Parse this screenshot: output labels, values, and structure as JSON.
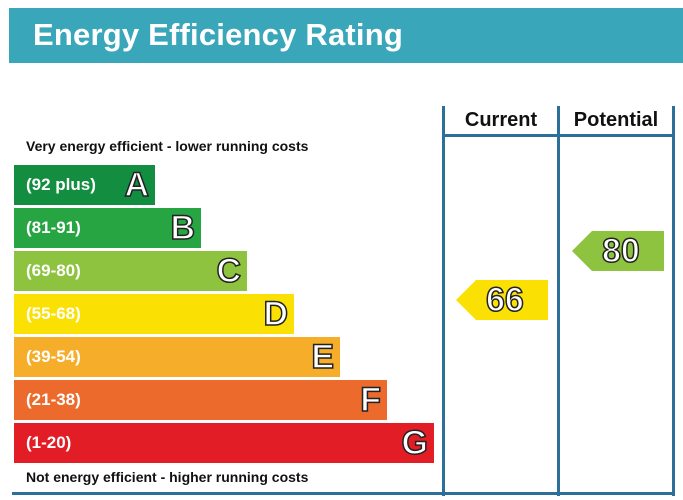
{
  "title": "Energy Efficiency Rating",
  "caption_top": "Very energy efficient - lower running costs",
  "caption_bottom": "Not energy efficient - higher running costs",
  "columns": {
    "current": "Current",
    "potential": "Potential"
  },
  "chart_data": {
    "type": "bar",
    "categories": [
      "A",
      "B",
      "C",
      "D",
      "E",
      "F",
      "G"
    ],
    "bands": [
      {
        "letter": "A",
        "range": "(92 plus)",
        "color": "#138d3f"
      },
      {
        "letter": "B",
        "range": "(81-91)",
        "color": "#27a542"
      },
      {
        "letter": "C",
        "range": "(69-80)",
        "color": "#8dc33f"
      },
      {
        "letter": "D",
        "range": "(55-68)",
        "color": "#fbe103"
      },
      {
        "letter": "E",
        "range": "(39-54)",
        "color": "#f5ad2a"
      },
      {
        "letter": "F",
        "range": "(21-38)",
        "color": "#ec6a2b"
      },
      {
        "letter": "G",
        "range": "(1-20)",
        "color": "#e31d25"
      }
    ],
    "current": {
      "value": 66,
      "band": "D",
      "color": "#fbe103"
    },
    "potential": {
      "value": 80,
      "band": "C",
      "color": "#8dc33f"
    }
  }
}
